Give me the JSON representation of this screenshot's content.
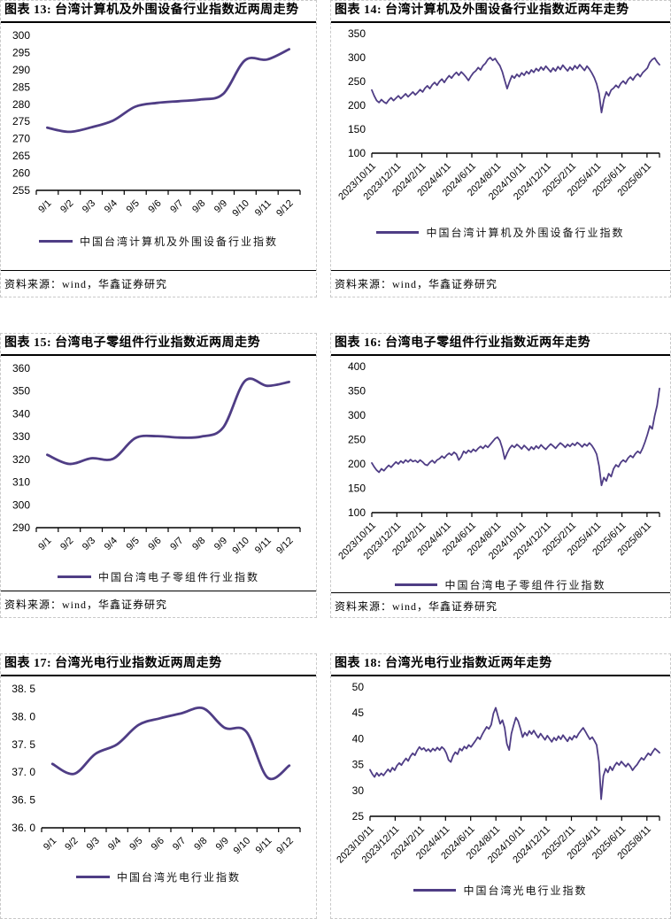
{
  "colors": {
    "line": "#4F3D85",
    "rule": "#000000",
    "dashed_border": "#c9c9c9"
  },
  "chart_data": [
    {
      "id": "figure-13",
      "type": "line",
      "title": "图表 13: 台湾计算机及外围设备行业指数近两周走势",
      "legend": "中国台湾计算机及外围设备行业指数",
      "source": "资料来源：wind，华鑫证券研究",
      "x": [
        "9/1",
        "9/2",
        "9/3",
        "9/4",
        "9/5",
        "9/6",
        "9/7",
        "9/8",
        "9/9",
        "9/10",
        "9/11",
        "9/12"
      ],
      "ylim": [
        255,
        300
      ],
      "yticks": [
        "300",
        "295",
        "290",
        "285",
        "280",
        "275",
        "270",
        "265",
        "260",
        "255"
      ],
      "values": [
        273.2,
        272.0,
        273.3,
        275.3,
        279.3,
        280.4,
        280.9,
        281.4,
        283.0,
        292.8,
        293.0,
        296.0
      ],
      "smooth": true
    },
    {
      "id": "figure-14",
      "type": "line",
      "title": "图表 14: 台湾计算机及外围设备行业指数近两年走势",
      "legend": "中国台湾计算机及外围设备行业指数",
      "source": "资料来源：wind，华鑫证券研究",
      "x": [
        "2023/10/11",
        "2023/12/11",
        "2024/2/11",
        "2024/4/11",
        "2024/6/11",
        "2024/8/11",
        "2024/10/11",
        "2024/12/11",
        "2025/2/11",
        "2025/4/11",
        "2025/6/11",
        "2025/8/11"
      ],
      "ylim": [
        100,
        350
      ],
      "yticks": [
        "350",
        "300",
        "250",
        "200",
        "150",
        "100"
      ],
      "values": [
        232,
        220,
        210,
        206,
        212,
        207,
        204,
        211,
        216,
        210,
        215,
        220,
        214,
        219,
        224,
        218,
        223,
        228,
        222,
        227,
        233,
        228,
        236,
        241,
        235,
        243,
        248,
        242,
        250,
        255,
        248,
        256,
        262,
        257,
        264,
        269,
        263,
        270,
        265,
        259,
        252,
        261,
        268,
        272,
        279,
        274,
        283,
        288,
        296,
        300,
        294,
        298,
        290,
        283,
        270,
        252,
        235,
        250,
        262,
        257,
        265,
        260,
        268,
        263,
        271,
        266,
        274,
        269,
        277,
        272,
        280,
        274,
        282,
        276,
        270,
        278,
        272,
        281,
        275,
        284,
        278,
        272,
        280,
        274,
        283,
        277,
        285,
        279,
        273,
        282,
        276,
        268,
        258,
        245,
        225,
        185,
        212,
        228,
        220,
        232,
        236,
        242,
        237,
        246,
        251,
        245,
        254,
        259,
        253,
        261,
        266,
        260,
        268,
        273,
        278,
        290,
        296,
        299,
        291,
        285
      ],
      "smooth": false
    },
    {
      "id": "figure-15",
      "type": "line",
      "title": "图表 15: 台湾电子零组件行业指数近两周走势",
      "legend": "中国台湾电子零组件行业指数",
      "source": "资料来源：wind，华鑫证券研究",
      "x": [
        "9/1",
        "9/2",
        "9/3",
        "9/4",
        "9/5",
        "9/6",
        "9/7",
        "9/8",
        "9/9",
        "9/10",
        "9/11",
        "9/12"
      ],
      "ylim": [
        290,
        360
      ],
      "yticks": [
        "360",
        "350",
        "340",
        "330",
        "320",
        "310",
        "300",
        "290"
      ],
      "values": [
        322.0,
        318.0,
        320.5,
        320.3,
        329.3,
        330.2,
        329.6,
        330.0,
        334.0,
        354.5,
        352.3,
        354.0
      ],
      "smooth": true
    },
    {
      "id": "figure-16",
      "type": "line",
      "title": "图表 16: 台湾电子零组件行业指数近两年走势",
      "legend": "中国台湾电子零组件行业指数",
      "source": "资料来源：wind，华鑫证券研究",
      "x": [
        "2023/10/11",
        "2023/12/11",
        "2024/2/11",
        "2024/4/11",
        "2024/6/11",
        "2024/8/11",
        "2024/10/11",
        "2024/12/11",
        "2025/2/11",
        "2025/4/11",
        "2025/6/11",
        "2025/8/11"
      ],
      "ylim": [
        100,
        400
      ],
      "yticks": [
        "400",
        "350",
        "300",
        "250",
        "200",
        "150",
        "100"
      ],
      "values": [
        202,
        194,
        187,
        183,
        190,
        186,
        192,
        197,
        193,
        199,
        204,
        200,
        206,
        202,
        208,
        204,
        209,
        205,
        207,
        203,
        208,
        204,
        199,
        197,
        203,
        207,
        202,
        208,
        211,
        216,
        212,
        218,
        222,
        218,
        224,
        220,
        208,
        215,
        226,
        222,
        228,
        224,
        230,
        226,
        232,
        236,
        232,
        238,
        234,
        240,
        246,
        252,
        255,
        248,
        232,
        210,
        222,
        232,
        238,
        234,
        240,
        236,
        231,
        238,
        233,
        228,
        235,
        230,
        237,
        232,
        239,
        234,
        230,
        236,
        241,
        237,
        232,
        238,
        243,
        239,
        234,
        240,
        236,
        242,
        238,
        244,
        240,
        235,
        241,
        237,
        243,
        238,
        230,
        220,
        196,
        156,
        172,
        165,
        180,
        174,
        190,
        198,
        194,
        203,
        208,
        204,
        212,
        217,
        213,
        221,
        226,
        222,
        232,
        245,
        260,
        278,
        272,
        298,
        320,
        355
      ],
      "smooth": false
    },
    {
      "id": "figure-17",
      "type": "line",
      "title": "图表 17: 台湾光电行业指数近两周走势",
      "legend": "中国台湾光电行业指数",
      "x": [
        "9/1",
        "9/2",
        "9/3",
        "9/4",
        "9/5",
        "9/6",
        "9/7",
        "9/8",
        "9/9",
        "9/10",
        "9/11",
        "9/12"
      ],
      "ylim": [
        36.0,
        38.5
      ],
      "yticks": [
        "38. 5",
        "38. 0",
        "37. 5",
        "37. 0",
        "36. 5",
        "36. 0"
      ],
      "values": [
        37.15,
        36.97,
        37.33,
        37.5,
        37.85,
        37.97,
        38.06,
        38.15,
        37.8,
        37.73,
        36.9,
        37.12
      ],
      "smooth": true
    },
    {
      "id": "figure-18",
      "type": "line",
      "title": "图表 18: 台湾光电行业指数近两年走势",
      "legend": "中国台湾光电行业指数",
      "x": [
        "2023/10/11",
        "2023/12/11",
        "2024/2/11",
        "2024/4/11",
        "2024/6/11",
        "2024/8/11",
        "2024/10/11",
        "2024/12/11",
        "2025/2/11",
        "2025/4/11",
        "2025/6/11",
        "2025/8/11"
      ],
      "ylim": [
        25,
        50
      ],
      "yticks": [
        "50",
        "45",
        "40",
        "35",
        "30",
        "25"
      ],
      "values": [
        34.0,
        33.2,
        32.6,
        33.4,
        32.8,
        33.3,
        32.9,
        33.5,
        34.1,
        33.6,
        34.4,
        33.9,
        34.8,
        35.3,
        34.9,
        35.6,
        36.2,
        35.7,
        36.6,
        37.2,
        36.8,
        37.7,
        38.4,
        37.9,
        38.2,
        37.6,
        38.0,
        37.5,
        38.1,
        37.7,
        38.3,
        37.8,
        38.4,
        38.0,
        37.2,
        35.9,
        35.5,
        36.7,
        37.4,
        37.0,
        38.1,
        37.7,
        38.5,
        38.1,
        38.8,
        38.4,
        39.0,
        39.6,
        40.3,
        39.9,
        40.8,
        41.6,
        42.3,
        41.9,
        42.7,
        44.9,
        46.0,
        44.4,
        42.9,
        43.6,
        42.1,
        39.0,
        37.8,
        41.0,
        42.6,
        44.1,
        43.4,
        42.0,
        40.3,
        41.2,
        40.6,
        41.5,
        40.9,
        41.6,
        40.8,
        40.2,
        41.0,
        40.4,
        39.8,
        40.6,
        40.0,
        39.4,
        40.2,
        39.7,
        40.5,
        39.9,
        40.7,
        40.1,
        39.5,
        40.3,
        39.8,
        40.6,
        40.2,
        41.0,
        41.6,
        42.1,
        41.4,
        40.6,
        39.9,
        40.3,
        39.6,
        38.8,
        35.6,
        28.3,
        32.8,
        34.2,
        33.5,
        34.6,
        33.9,
        34.8,
        35.4,
        34.9,
        35.6,
        35.1,
        34.6,
        35.2,
        34.7,
        33.9,
        34.5,
        35.0,
        35.7,
        36.3,
        35.9,
        36.6,
        37.2,
        36.8,
        37.5,
        38.1,
        37.7,
        37.3
      ],
      "smooth": false
    }
  ]
}
